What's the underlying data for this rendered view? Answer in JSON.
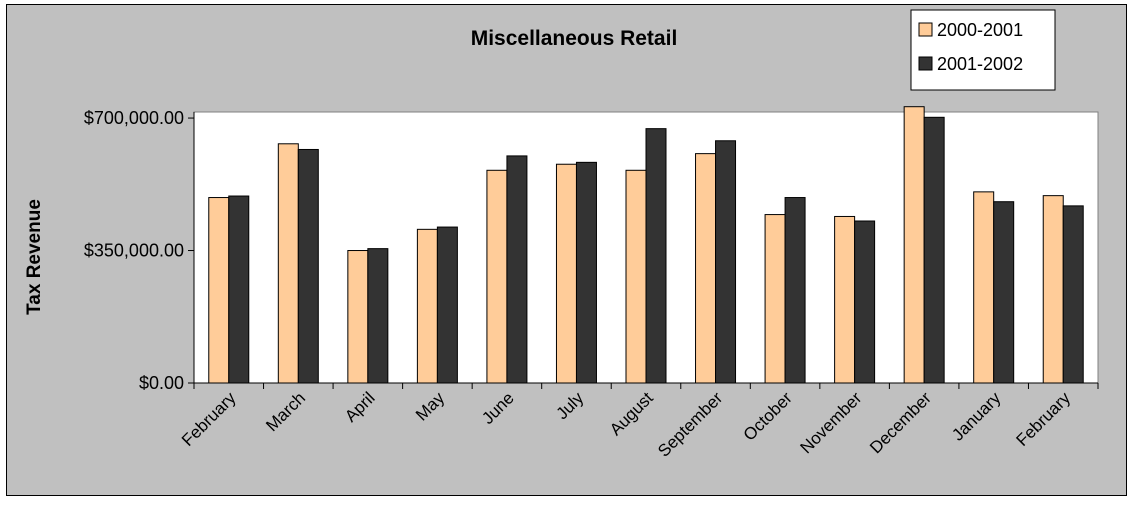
{
  "chart_data": {
    "type": "bar",
    "title": "Miscellaneous Retail",
    "xlabel": "",
    "ylabel": "Tax Revenue",
    "ylim": [
      0,
      700000
    ],
    "yticks": [
      {
        "value": 0,
        "label": "$0.00"
      },
      {
        "value": 350000,
        "label": "$350,000.00"
      },
      {
        "value": 700000,
        "label": "$700,000.00"
      }
    ],
    "legend_position": "top-right",
    "categories": [
      "February",
      "March",
      "April",
      "May",
      "June",
      "July",
      "August",
      "September",
      "October",
      "November",
      "December",
      "January",
      "February"
    ],
    "series": [
      {
        "name": "2000-2001",
        "color": "#ffcc99",
        "values": [
          490000,
          632000,
          350000,
          406000,
          562000,
          578000,
          562000,
          606000,
          445000,
          440000,
          730000,
          505000,
          495000
        ]
      },
      {
        "name": "2001-2002",
        "color": "#333333",
        "values": [
          494000,
          617000,
          355000,
          412000,
          600000,
          583000,
          672000,
          640000,
          490000,
          428000,
          702000,
          479000,
          468000
        ]
      }
    ]
  }
}
